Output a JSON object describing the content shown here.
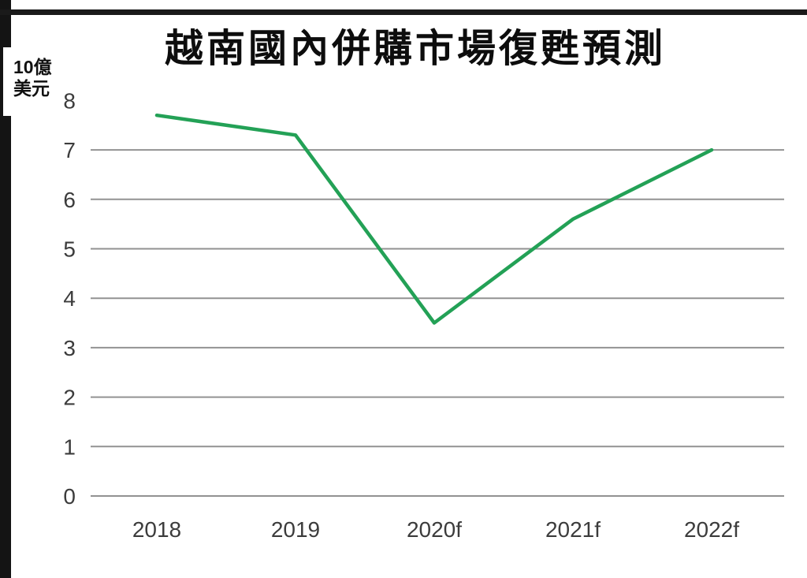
{
  "header": {
    "title": "越南國內併購市場復甦預測"
  },
  "axis_unit": {
    "line1": "10億",
    "line2": "美元"
  },
  "chart_data": {
    "type": "line",
    "title": "越南國內併購市場復甦預測",
    "unit_label": "10億美元",
    "categories": [
      "2018",
      "2019",
      "2020f",
      "2021f",
      "2022f"
    ],
    "values": [
      7.7,
      7.3,
      3.5,
      5.6,
      7.0
    ],
    "xlabel": "",
    "ylabel": "10億美元",
    "ylim": [
      0,
      8
    ],
    "ytick_labels": [
      "0",
      "1",
      "2",
      "3",
      "4",
      "5",
      "6",
      "7",
      "8"
    ],
    "ytick_values": [
      0,
      1,
      2,
      3,
      4,
      5,
      6,
      7,
      8
    ],
    "gridline_values": [
      0,
      1,
      2,
      3,
      4,
      5,
      6,
      7
    ],
    "grid": true,
    "legend_position": "none",
    "line_color": "#23a156",
    "grid_color": "#929292",
    "label_color": "#3c3c3c",
    "title_color": "#0d0d0d"
  }
}
